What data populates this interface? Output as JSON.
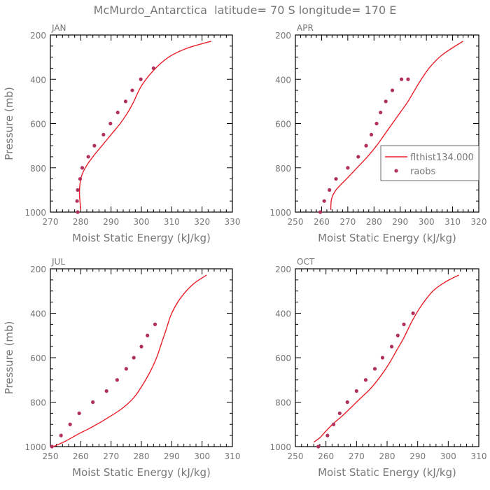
{
  "title": "McMurdo_Antarctica  latitude= 70 S longitude= 170 E",
  "colors": {
    "model_line": "#e8202a",
    "raobs": "#b0305c",
    "axis": "#000000",
    "text": "#777777"
  },
  "legend": {
    "model_label": "flthist134.000",
    "obs_label": "raobs"
  },
  "chart_data": [
    {
      "type": "line",
      "panel": "JAN",
      "xlabel": "Moist Static Energy (kJ/kg)",
      "ylabel": "Pressure (mb)",
      "xlim": [
        270,
        330
      ],
      "ylim": [
        1000,
        200
      ],
      "xticks": [
        270,
        280,
        290,
        300,
        310,
        320,
        330
      ],
      "yticks": [
        200,
        400,
        600,
        800,
        1000
      ],
      "model": {
        "x": [
          280.0,
          279.8,
          279.6,
          279.7,
          280.2,
          281.5,
          284.0,
          287.0,
          290.0,
          293.0,
          295.5,
          297.5,
          300.0,
          304.0,
          309.0,
          315.0,
          323.0
        ],
        "p": [
          990,
          960,
          920,
          880,
          840,
          800,
          750,
          700,
          650,
          600,
          550,
          500,
          430,
          360,
          300,
          260,
          228
        ]
      },
      "raobs": {
        "x": [
          279.0,
          278.8,
          279.0,
          279.8,
          280.5,
          282.5,
          284.5,
          287.5,
          289.8,
          292.2,
          294.8,
          297.0,
          299.8,
          304.0
        ],
        "p": [
          1000,
          950,
          900,
          850,
          800,
          750,
          700,
          650,
          600,
          550,
          500,
          450,
          400,
          350
        ]
      }
    },
    {
      "type": "line",
      "panel": "APR",
      "xlabel": "Moist Static Energy (kJ/kg)",
      "ylabel": "",
      "xlim": [
        250,
        320
      ],
      "ylim": [
        1000,
        200
      ],
      "xticks": [
        250,
        260,
        270,
        280,
        290,
        300,
        310,
        320
      ],
      "yticks": [
        200,
        400,
        600,
        800,
        1000
      ],
      "model": {
        "x": [
          263.5,
          263.8,
          265.5,
          269.5,
          273.5,
          277.5,
          281.0,
          284.0,
          287.0,
          290.0,
          293.0,
          297.0,
          301.0,
          306.0,
          314.0
        ],
        "p": [
          990,
          940,
          900,
          850,
          800,
          750,
          700,
          650,
          600,
          550,
          500,
          420,
          350,
          290,
          228
        ]
      },
      "raobs": {
        "x": [
          259.5,
          261.0,
          263.0,
          265.5,
          270.0,
          274.0,
          277.0,
          279.0,
          281.0,
          282.5,
          284.5,
          287.0,
          290.5,
          293.0
        ],
        "p": [
          1000,
          950,
          900,
          850,
          800,
          750,
          700,
          650,
          600,
          550,
          500,
          450,
          400,
          400
        ]
      }
    },
    {
      "type": "line",
      "panel": "JUL",
      "xlabel": "Moist Static Energy (kJ/kg)",
      "ylabel": "Pressure (mb)",
      "xlim": [
        250,
        310
      ],
      "ylim": [
        1000,
        200
      ],
      "xticks": [
        250,
        260,
        270,
        280,
        290,
        300,
        310
      ],
      "yticks": [
        200,
        400,
        600,
        800,
        1000
      ],
      "model": {
        "x": [
          251.0,
          255.0,
          259.0,
          264.0,
          269.0,
          273.5,
          277.5,
          280.5,
          283.0,
          285.0,
          286.5,
          288.0,
          290.0,
          293.0,
          297.0,
          301.5
        ],
        "p": [
          1000,
          975,
          945,
          910,
          870,
          830,
          780,
          720,
          660,
          600,
          540,
          480,
          400,
          330,
          270,
          228
        ]
      },
      "raobs": {
        "x": [
          250.5,
          253.5,
          256.5,
          259.5,
          264.0,
          268.5,
          272.0,
          275.0,
          277.5,
          280.0,
          282.0,
          284.5
        ],
        "p": [
          1000,
          950,
          900,
          850,
          800,
          750,
          700,
          650,
          600,
          550,
          500,
          450
        ]
      }
    },
    {
      "type": "line",
      "panel": "OCT",
      "xlabel": "Moist Static Energy (kJ/kg)",
      "ylabel": "",
      "xlim": [
        250,
        310
      ],
      "ylim": [
        1000,
        200
      ],
      "xticks": [
        250,
        260,
        270,
        280,
        290,
        300,
        310
      ],
      "yticks": [
        200,
        400,
        600,
        800,
        1000
      ],
      "model": {
        "x": [
          256.0,
          258.0,
          260.0,
          262.5,
          265.5,
          268.5,
          271.5,
          274.5,
          277.5,
          280.5,
          283.0,
          285.5,
          288.0,
          291.0,
          295.0,
          299.0,
          303.5
        ],
        "p": [
          980,
          960,
          930,
          895,
          860,
          820,
          780,
          740,
          690,
          630,
          570,
          510,
          440,
          370,
          300,
          260,
          228
        ]
      },
      "raobs": {
        "x": [
          257.5,
          260.5,
          262.5,
          264.5,
          267.0,
          270.0,
          273.0,
          276.0,
          278.5,
          281.5,
          283.5,
          285.5,
          288.5
        ],
        "p": [
          1000,
          950,
          900,
          850,
          800,
          750,
          700,
          650,
          600,
          550,
          500,
          450,
          400
        ]
      }
    }
  ]
}
